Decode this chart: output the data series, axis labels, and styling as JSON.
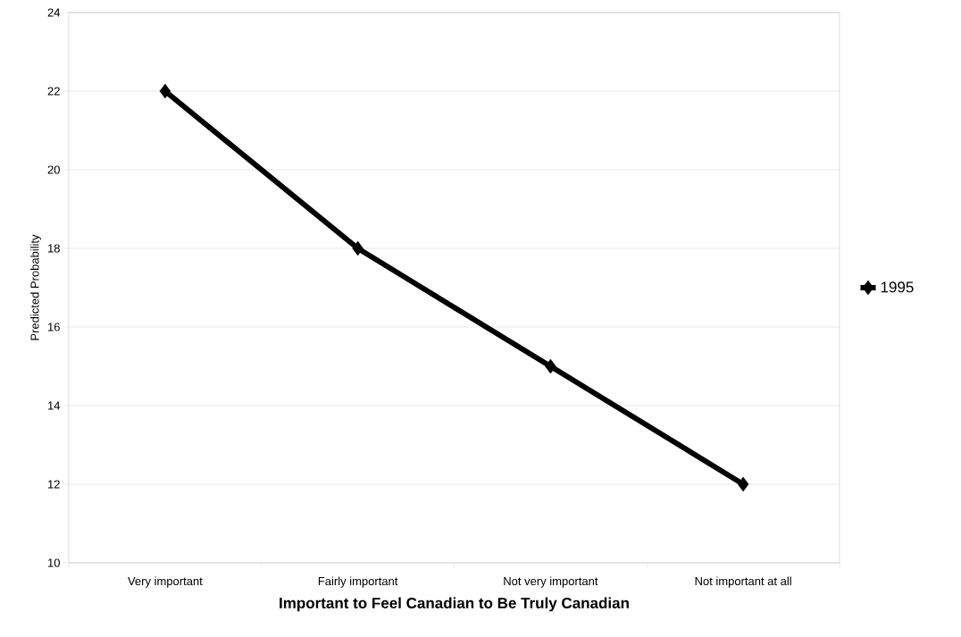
{
  "chart_data": {
    "type": "line",
    "xlabel": "Important to Feel Canadian to Be Truly Canadian",
    "ylabel": "Predicted Probability",
    "categories": [
      "Very important",
      "Fairly important",
      "Not very important",
      "Not important at all"
    ],
    "series": [
      {
        "name": "1995",
        "color": "#000000",
        "values": [
          22,
          18,
          15,
          12
        ]
      }
    ],
    "ylim": [
      10,
      24
    ],
    "yticks": [
      10,
      12,
      14,
      16,
      18,
      20,
      22,
      24
    ],
    "grid": "y",
    "legend": "right",
    "marker": "diamond",
    "line_style": "solid"
  }
}
